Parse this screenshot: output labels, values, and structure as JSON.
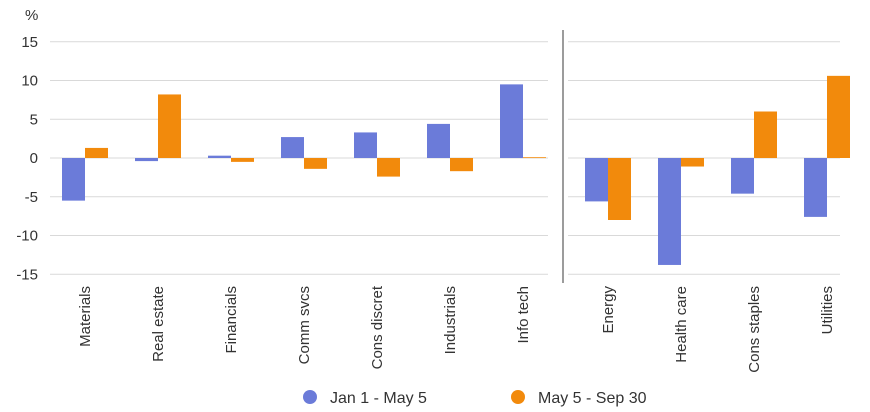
{
  "chart_data": {
    "type": "bar",
    "unit_label": "%",
    "categories": [
      "Materials",
      "Real estate",
      "Financials",
      "Comm svcs",
      "Cons discret",
      "Industrials",
      "Info tech",
      "Energy",
      "Health care",
      "Cons staples",
      "Utilities"
    ],
    "groups": [
      {
        "categories": [
          "Materials",
          "Real estate",
          "Financials",
          "Comm svcs",
          "Cons discret",
          "Industrials",
          "Info tech"
        ]
      },
      {
        "categories": [
          "Energy",
          "Health care",
          "Cons staples",
          "Utilities"
        ]
      }
    ],
    "series": [
      {
        "name": "Jan 1 - May 5",
        "color": "#6b7bd9",
        "values": [
          -5.5,
          -0.4,
          0.3,
          2.7,
          3.3,
          4.4,
          9.5,
          -5.6,
          -13.8,
          -4.6,
          -7.6
        ]
      },
      {
        "name": "May 5 - Sep 30",
        "color": "#f28a0c",
        "values": [
          1.3,
          8.2,
          -0.5,
          -1.4,
          -2.4,
          -1.7,
          0.1,
          -8.0,
          -1.1,
          6.0,
          10.6
        ]
      }
    ],
    "ylim": [
      -15,
      15
    ],
    "yticks": [
      "15",
      "10",
      "5",
      "0",
      "-5",
      "-10",
      "-15"
    ],
    "ytick_values": [
      15,
      10,
      5,
      0,
      -5,
      -10,
      -15
    ],
    "grid": true,
    "legend_position": "bottom",
    "xlabel": "",
    "ylabel": ""
  }
}
